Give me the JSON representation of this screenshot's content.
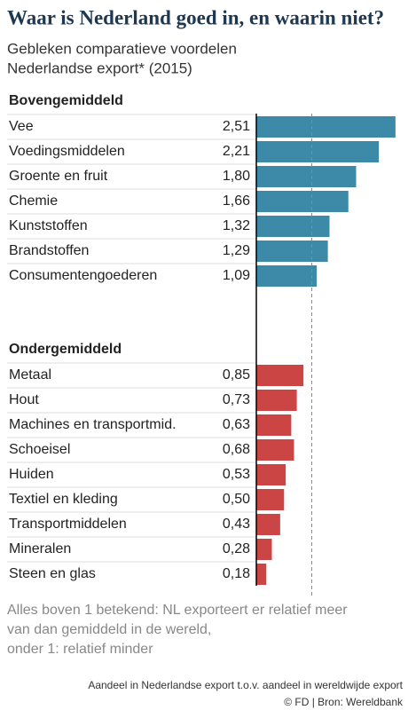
{
  "chart_data": {
    "type": "hbar-groups",
    "title": "Waar is Nederland goed in, en waarin niet?",
    "subtitle": [
      "Gebleken comparatieve voordelen",
      "Nederlandse export* (2015)"
    ],
    "groups": [
      {
        "name": "Bovengemiddeld",
        "color": "#3c8aa7",
        "categories": [
          "Vee",
          "Voedingsmiddelen",
          "Groente en fruit",
          "Chemie",
          "Kunststoffen",
          "Brandstoffen",
          "Consumentengoederen"
        ],
        "values": [
          2.51,
          2.21,
          1.8,
          1.66,
          1.32,
          1.29,
          1.09
        ],
        "value_labels": [
          "2,51",
          "2,21",
          "1,80",
          "1,66",
          "1,32",
          "1,29",
          "1,09"
        ]
      },
      {
        "name": "Ondergemiddeld",
        "color": "#cc4545",
        "categories": [
          "Metaal",
          "Hout",
          "Machines en transportmid.",
          "Schoeisel",
          "Huiden",
          "Textiel en kleding",
          "Transportmiddelen",
          "Mineralen",
          "Steen en glas"
        ],
        "values": [
          0.85,
          0.73,
          0.63,
          0.68,
          0.53,
          0.5,
          0.43,
          0.28,
          0.18
        ],
        "value_labels": [
          "0,85",
          "0,73",
          "0,63",
          "0,68",
          "0,53",
          "0,50",
          "0,43",
          "0,28",
          "0,18"
        ]
      }
    ],
    "xlim": [
      0,
      2.6
    ],
    "reference_line": 1,
    "notes": [
      "Alles boven 1 betekend: NL exporteert er relatief meer",
      "van dan gemiddeld in de wereld,",
      "onder 1: relatief minder"
    ],
    "axis_note": "Aandeel in Nederlandse export t.o.v. aandeel in wereldwijde export",
    "source": "© FD | Bron: Wereldbank"
  }
}
